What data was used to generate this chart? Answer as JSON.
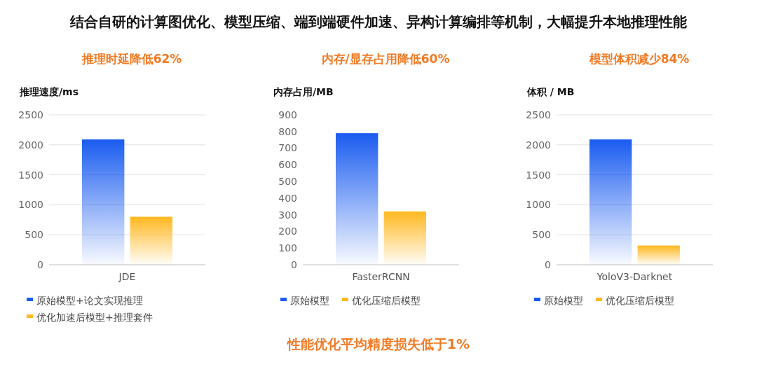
{
  "chart_data": [
    {
      "type": "bar",
      "title": "推理时延降低62%",
      "ylabel": "推理速度/ms",
      "categories": [
        "JDE"
      ],
      "ylim": [
        0,
        2500
      ],
      "yticks": [
        0,
        500,
        1000,
        1500,
        2000,
        2500
      ],
      "grid": "y",
      "legend": "bottom",
      "series": [
        {
          "name": "原始模型+论文实现推理",
          "color": "#1a5cf0",
          "values": [
            2090
          ]
        },
        {
          "name": "优化加速后模型+推理套件",
          "color": "#ffb81f",
          "values": [
            800
          ]
        }
      ]
    },
    {
      "type": "bar",
      "title": "内存/显存占用降低60%",
      "ylabel": "内存占用/MB",
      "categories": [
        "FasterRCNN"
      ],
      "ylim": [
        0,
        900
      ],
      "yticks": [
        0,
        100,
        200,
        300,
        400,
        500,
        600,
        700,
        800,
        900
      ],
      "legend": "bottom",
      "series": [
        {
          "name": "原始模型",
          "color": "#1a5cf0",
          "values": [
            790
          ]
        },
        {
          "name": "优化压缩后模型",
          "color": "#ffb81f",
          "values": [
            320
          ]
        }
      ]
    },
    {
      "type": "bar",
      "title": "模型体积减少84%",
      "ylabel": "体积 / MB",
      "categories": [
        "YoloV3-Darknet"
      ],
      "ylim": [
        0,
        2500
      ],
      "yticks": [
        0,
        500,
        1000,
        1500,
        2000,
        2500
      ],
      "grid": "y",
      "legend": "bottom",
      "series": [
        {
          "name": "原始模型",
          "color": "#1a5cf0",
          "values": [
            2090
          ]
        },
        {
          "name": "优化压缩后模型",
          "color": "#ffb81f",
          "values": [
            320
          ]
        }
      ]
    },
    {
      "type": "other",
      "title": "结合自研的计算图优化、模型压缩、端到端硬件加速、异构计算编排等机制，大幅提升本地推理性能",
      "annotations": [
        "性能优化平均精度损失低于1%"
      ]
    }
  ]
}
